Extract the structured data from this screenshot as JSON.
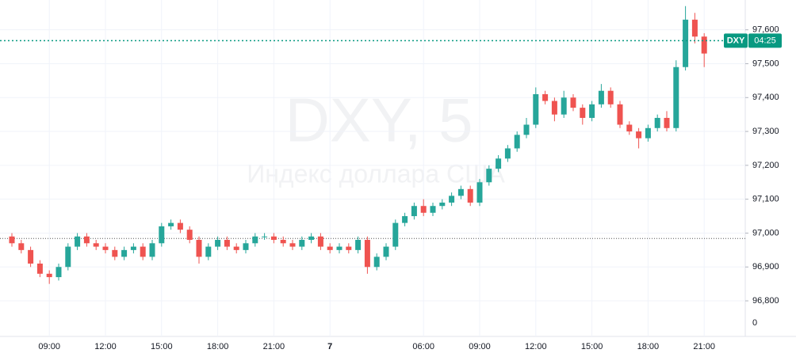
{
  "chart_data": {
    "type": "candlestick",
    "watermark": {
      "symbol": "DXY, 5",
      "description": "Индекс доллара США"
    },
    "categories": [
      null,
      null,
      null,
      null,
      "09:00",
      null,
      null,
      null,
      null,
      null,
      "12:00",
      null,
      null,
      null,
      null,
      null,
      "15:00",
      null,
      null,
      null,
      null,
      null,
      "18:00",
      null,
      null,
      null,
      null,
      null,
      "21:00",
      null,
      null,
      null,
      null,
      null,
      "7",
      null,
      null,
      null,
      null,
      null,
      null,
      null,
      null,
      null,
      "06:00",
      null,
      null,
      null,
      null,
      null,
      "09:00",
      null,
      null,
      null,
      null,
      null,
      "12:00",
      null,
      null,
      null,
      null,
      null,
      "15:00",
      null,
      null,
      null,
      null,
      null,
      "18:00",
      null,
      null,
      null,
      null,
      null,
      "21:00"
    ],
    "open": [
      96.99,
      96.97,
      96.95,
      96.91,
      96.88,
      96.87,
      96.9,
      96.96,
      96.99,
      96.97,
      96.96,
      96.95,
      96.93,
      96.95,
      96.96,
      96.93,
      96.97,
      97.02,
      97.03,
      97.01,
      96.98,
      96.93,
      96.96,
      96.98,
      96.96,
      96.95,
      96.97,
      96.99,
      96.99,
      96.98,
      96.97,
      96.96,
      96.98,
      96.99,
      96.96,
      96.95,
      96.96,
      96.95,
      96.98,
      96.9,
      96.93,
      96.96,
      97.03,
      97.05,
      97.08,
      97.06,
      97.08,
      97.09,
      97.11,
      97.13,
      97.09,
      97.15,
      97.19,
      97.22,
      97.25,
      97.29,
      97.32,
      97.41,
      97.39,
      97.35,
      97.4,
      97.37,
      97.34,
      97.38,
      97.42,
      97.38,
      97.32,
      97.3,
      97.28,
      97.31,
      97.34,
      97.31,
      97.49,
      97.63,
      97.58
    ],
    "high": [
      97.0,
      96.98,
      96.96,
      96.92,
      96.89,
      96.91,
      96.97,
      97.0,
      97.0,
      96.98,
      96.97,
      96.96,
      96.96,
      96.97,
      96.97,
      96.98,
      97.03,
      97.04,
      97.04,
      97.02,
      96.99,
      96.97,
      96.99,
      96.99,
      96.97,
      96.98,
      97.0,
      97.0,
      97.0,
      96.99,
      96.98,
      96.99,
      97.0,
      97.0,
      96.97,
      96.97,
      96.97,
      96.99,
      96.99,
      96.94,
      96.97,
      97.04,
      97.06,
      97.09,
      97.1,
      97.09,
      97.1,
      97.12,
      97.14,
      97.14,
      97.16,
      97.2,
      97.23,
      97.26,
      97.3,
      97.34,
      97.43,
      97.42,
      97.4,
      97.42,
      97.41,
      97.38,
      97.39,
      97.44,
      97.43,
      97.39,
      97.33,
      97.31,
      97.32,
      97.35,
      97.36,
      97.51,
      97.67,
      97.65,
      97.59
    ],
    "low": [
      96.96,
      96.94,
      96.9,
      96.87,
      96.85,
      96.86,
      96.89,
      96.95,
      96.96,
      96.95,
      96.94,
      96.92,
      96.92,
      96.94,
      96.92,
      96.92,
      96.96,
      97.01,
      97.0,
      96.97,
      96.91,
      96.92,
      96.95,
      96.95,
      96.94,
      96.94,
      96.96,
      96.98,
      96.97,
      96.96,
      96.95,
      96.95,
      96.97,
      96.95,
      96.94,
      96.94,
      96.94,
      96.94,
      96.88,
      96.89,
      96.92,
      96.95,
      97.02,
      97.04,
      97.05,
      97.05,
      97.07,
      97.08,
      97.1,
      97.08,
      97.08,
      97.14,
      97.18,
      97.21,
      97.24,
      97.28,
      97.31,
      97.38,
      97.33,
      97.34,
      97.36,
      97.32,
      97.33,
      97.37,
      97.37,
      97.31,
      97.29,
      97.25,
      97.27,
      97.3,
      97.3,
      97.3,
      97.48,
      97.56,
      97.49
    ],
    "close": [
      96.97,
      96.95,
      96.91,
      96.88,
      96.87,
      96.9,
      96.96,
      96.99,
      96.97,
      96.96,
      96.95,
      96.93,
      96.95,
      96.96,
      96.93,
      96.97,
      97.02,
      97.03,
      97.01,
      96.98,
      96.93,
      96.96,
      96.98,
      96.96,
      96.95,
      96.97,
      96.99,
      96.99,
      96.98,
      96.97,
      96.96,
      96.98,
      96.99,
      96.96,
      96.95,
      96.96,
      96.95,
      96.98,
      96.9,
      96.93,
      96.96,
      97.03,
      97.05,
      97.08,
      97.06,
      97.08,
      97.09,
      97.11,
      97.13,
      97.09,
      97.15,
      97.19,
      97.22,
      97.25,
      97.29,
      97.32,
      97.41,
      97.39,
      97.35,
      97.4,
      97.37,
      97.34,
      97.38,
      97.42,
      97.38,
      97.32,
      97.3,
      97.28,
      97.31,
      97.34,
      97.31,
      97.49,
      97.63,
      97.58,
      97.53
    ],
    "up_color": "#26a69a",
    "down_color": "#ef5350",
    "ylim": [
      96.695,
      97.688
    ],
    "yticks": [
      {
        "value": 96.8,
        "label": "96,800"
      },
      {
        "value": 96.9,
        "label": "96,900"
      },
      {
        "value": 97.0,
        "label": "97,000"
      },
      {
        "value": 97.1,
        "label": "97,100"
      },
      {
        "value": 97.2,
        "label": "97,200"
      },
      {
        "value": 97.3,
        "label": "97,300"
      },
      {
        "value": 97.4,
        "label": "97,400"
      },
      {
        "value": 97.5,
        "label": "97,500"
      },
      {
        "value": 97.6,
        "label": "97,600"
      }
    ],
    "volume_ticks": [
      0
    ],
    "grid": true,
    "price_line": {
      "value": 97.568,
      "symbol": "DXY",
      "countdown": "04:25",
      "color": "#089981"
    },
    "prev_close_line": {
      "value": 96.984,
      "color": "#555555"
    }
  }
}
